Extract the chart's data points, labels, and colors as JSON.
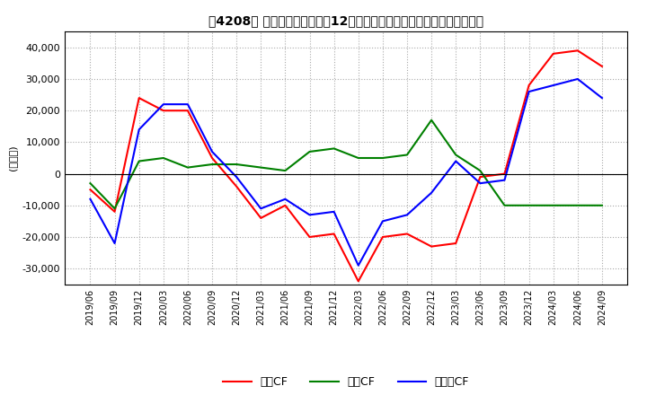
{
  "title": "［4208］ キャッシュフローの12か月移動合計の対前年同期増減額の推移",
  "ylabel": "(百万円)",
  "ylim": [
    -35000,
    45000
  ],
  "yticks": [
    -30000,
    -20000,
    -10000,
    0,
    10000,
    20000,
    30000,
    40000
  ],
  "x_labels": [
    "2019/06",
    "2019/09",
    "2019/12",
    "2020/03",
    "2020/06",
    "2020/09",
    "2020/12",
    "2021/03",
    "2021/06",
    "2021/09",
    "2021/12",
    "2022/03",
    "2022/06",
    "2022/09",
    "2022/12",
    "2023/03",
    "2023/06",
    "2023/09",
    "2023/12",
    "2024/03",
    "2024/06",
    "2024/09"
  ],
  "operating_cf": [
    -5000,
    -12000,
    24000,
    20000,
    20000,
    5000,
    -4000,
    -14000,
    -10000,
    -20000,
    -19000,
    -34000,
    -20000,
    -19000,
    -23000,
    -22000,
    -1000,
    0,
    28000,
    38000,
    39000,
    34000
  ],
  "investing_cf": [
    -3000,
    -11000,
    4000,
    5000,
    2000,
    3000,
    3000,
    2000,
    1000,
    7000,
    8000,
    5000,
    5000,
    6000,
    17000,
    6000,
    1000,
    -10000,
    -10000,
    -10000,
    -10000,
    -10000
  ],
  "free_cf": [
    -8000,
    -22000,
    14000,
    22000,
    22000,
    7000,
    -1000,
    -11000,
    -8000,
    -13000,
    -12000,
    -29000,
    -15000,
    -13000,
    -6000,
    4000,
    -3000,
    -2000,
    26000,
    28000,
    30000,
    24000
  ],
  "operating_color": "#FF0000",
  "investing_color": "#008000",
  "free_color": "#0000FF",
  "grid_color": "#AAAAAA",
  "background_color": "#FFFFFF",
  "legend_labels": [
    "営業CF",
    "投資CF",
    "フリーCF"
  ]
}
